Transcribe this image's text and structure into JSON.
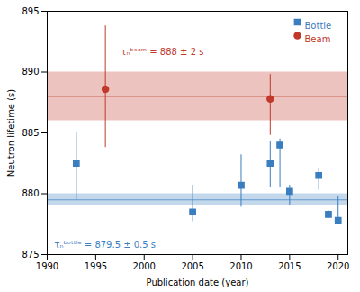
{
  "chart_data": {
    "type": "scatter",
    "xlabel": "Publication date (year)",
    "ylabel": "Neutron lifetime (s)",
    "series": [
      {
        "name": "Bottle",
        "color": "#3a7ebf",
        "marker": "square",
        "x": [
          1993,
          2005,
          2010,
          2013,
          2014,
          2015,
          2018,
          2019,
          2020
        ],
        "values": [
          882.5,
          878.5,
          880.7,
          882.5,
          884.0,
          880.2,
          881.5,
          878.3,
          877.8
        ],
        "yerr_lo": [
          3.0,
          0.8,
          1.8,
          2.0,
          3.5,
          1.2,
          1.2,
          0.3,
          0.3
        ],
        "yerr_hi": [
          2.5,
          2.2,
          2.5,
          1.8,
          0.5,
          0.5,
          0.6,
          0.3,
          2.0
        ],
        "mean": 879.5,
        "sigma": 0.5
      },
      {
        "name": "Beam",
        "color": "#c0392b",
        "marker": "circle",
        "x": [
          1996,
          2013
        ],
        "values": [
          888.6,
          887.8
        ],
        "yerr_lo": [
          4.8,
          3.0
        ],
        "yerr_hi": [
          5.2,
          2.0
        ],
        "mean": 888.0,
        "sigma": 2.0
      }
    ],
    "annotations": [
      {
        "text": "τₙᵇᵒᵗᵗˡᵉ = 879.5 ± 0.5 s",
        "color": "#3a7ebf"
      },
      {
        "text": "τₙᵇᵉᵃᵐ = 888 ± 2 s",
        "color": "#c0392b"
      }
    ],
    "xlim": [
      1990,
      2021
    ],
    "xticks": [
      1990,
      1995,
      2000,
      2005,
      2010,
      2015,
      2020
    ],
    "ylim": [
      875,
      895
    ],
    "yticks": [
      875,
      880,
      885,
      890,
      895
    ],
    "grid": false,
    "legend": "upper right"
  }
}
